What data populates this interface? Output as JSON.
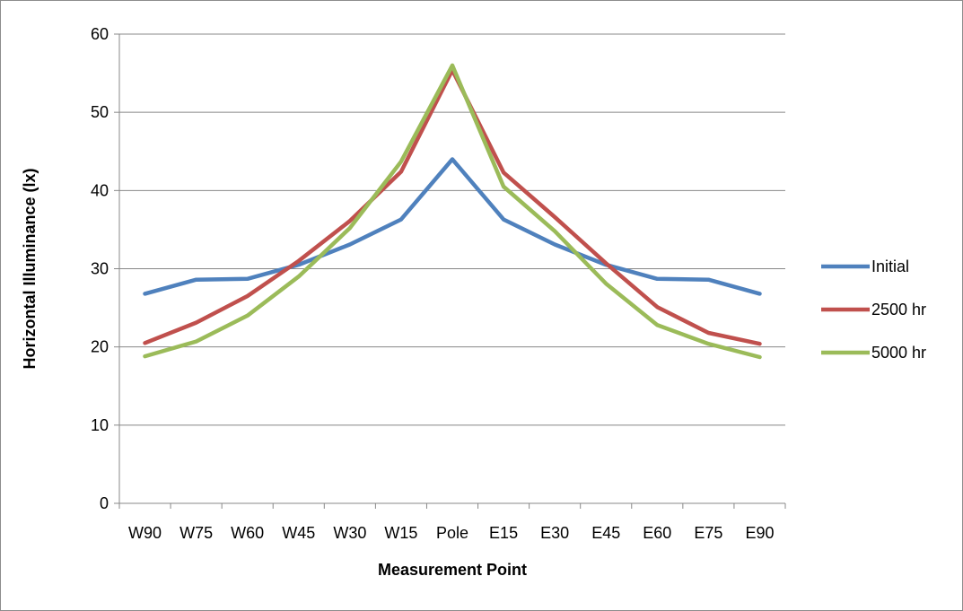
{
  "chart_data": {
    "type": "line",
    "title": "",
    "xlabel": "Measurement Point",
    "ylabel": "Horizontal Illuminance (lx)",
    "categories": [
      "W90",
      "W75",
      "W60",
      "W45",
      "W30",
      "W15",
      "Pole",
      "E15",
      "E30",
      "E45",
      "E60",
      "E75",
      "E90"
    ],
    "ylim": [
      0,
      60
    ],
    "yticks": [
      "0",
      "10",
      "20",
      "30",
      "40",
      "50",
      "60"
    ],
    "grid": true,
    "legend_position": "right",
    "series": [
      {
        "name": "Initial",
        "color": "#4f81bd",
        "values": [
          26.8,
          28.6,
          28.7,
          30.5,
          33.1,
          36.3,
          44.0,
          36.3,
          33.1,
          30.5,
          28.7,
          28.6,
          26.8
        ]
      },
      {
        "name": "2500 hr",
        "color": "#c0504d",
        "values": [
          20.5,
          23.1,
          26.5,
          31.0,
          36.1,
          42.4,
          55.4,
          42.3,
          36.6,
          30.7,
          25.1,
          21.8,
          20.4
        ]
      },
      {
        "name": "5000 hr",
        "color": "#9bbb59",
        "values": [
          18.8,
          20.7,
          24.0,
          29.0,
          35.2,
          43.7,
          56.0,
          40.5,
          34.8,
          28.1,
          22.8,
          20.4,
          18.7
        ]
      }
    ]
  }
}
